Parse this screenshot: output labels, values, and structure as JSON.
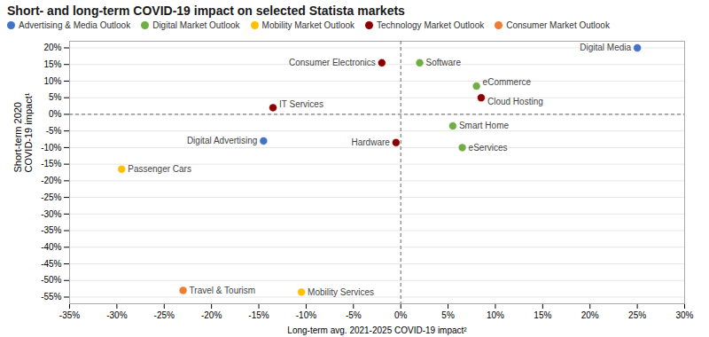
{
  "chart_data": {
    "type": "scatter",
    "title": "Short- and long-term COVID-19 impact on selected Statista markets",
    "xlabel": "Long-term avg. 2021-2025 COVID-19 impact²",
    "ylabel": "Short-term 2020\nCOVID-19 impact¹",
    "xlim": [
      -0.35,
      0.3
    ],
    "ylim": [
      -0.57,
      0.22
    ],
    "xticks": [
      {
        "value": -0.35,
        "label": "-35%"
      },
      {
        "value": -0.3,
        "label": "-30%"
      },
      {
        "value": -0.25,
        "label": "-25%"
      },
      {
        "value": -0.2,
        "label": "-20%"
      },
      {
        "value": -0.15,
        "label": "-15%"
      },
      {
        "value": -0.1,
        "label": "-10%"
      },
      {
        "value": -0.05,
        "label": "-5%"
      },
      {
        "value": 0.0,
        "label": "0%"
      },
      {
        "value": 0.05,
        "label": "5%"
      },
      {
        "value": 0.1,
        "label": "10%"
      },
      {
        "value": 0.15,
        "label": "15%"
      },
      {
        "value": 0.2,
        "label": "20%"
      },
      {
        "value": 0.25,
        "label": "25%"
      },
      {
        "value": 0.3,
        "label": "30%"
      }
    ],
    "yticks": [
      {
        "value": -0.55,
        "label": "-55%"
      },
      {
        "value": -0.5,
        "label": "-50%"
      },
      {
        "value": -0.45,
        "label": "-45%"
      },
      {
        "value": -0.4,
        "label": "-40%"
      },
      {
        "value": -0.35,
        "label": "-35%"
      },
      {
        "value": -0.3,
        "label": "-30%"
      },
      {
        "value": -0.25,
        "label": "-25%"
      },
      {
        "value": -0.2,
        "label": "-20%"
      },
      {
        "value": -0.15,
        "label": "-15%"
      },
      {
        "value": -0.1,
        "label": "-10%"
      },
      {
        "value": -0.05,
        "label": "-5%"
      },
      {
        "value": 0.0,
        "label": "0%"
      },
      {
        "value": 0.05,
        "label": "5%"
      },
      {
        "value": 0.1,
        "label": "10%"
      },
      {
        "value": 0.15,
        "label": "15%"
      },
      {
        "value": 0.2,
        "label": "20%"
      }
    ],
    "grid": true,
    "series": [
      {
        "name": "Advertising & Media Outlook",
        "color": "#4472C4"
      },
      {
        "name": "Digital Market Outlook",
        "color": "#70AD47"
      },
      {
        "name": "Mobility Market Outlook",
        "color": "#FFC000"
      },
      {
        "name": "Technology Market Outlook",
        "color": "#8B0000"
      },
      {
        "name": "Consumer Market Outlook",
        "color": "#ED7D31"
      }
    ],
    "points": [
      {
        "label": "Digital Media",
        "x": 0.25,
        "y": 0.2,
        "series": "Advertising & Media Outlook"
      },
      {
        "label": "eCommerce",
        "x": 0.08,
        "y": 0.085,
        "series": "Digital Market Outlook"
      },
      {
        "label": "Software",
        "x": 0.02,
        "y": 0.155,
        "series": "Digital Market Outlook"
      },
      {
        "label": "Cloud Hosting",
        "x": 0.085,
        "y": 0.05,
        "series": "Technology Market Outlook"
      },
      {
        "label": "Smart Home",
        "x": 0.055,
        "y": -0.035,
        "series": "Digital Market Outlook"
      },
      {
        "label": "eServices",
        "x": 0.065,
        "y": -0.1,
        "series": "Digital Market Outlook"
      },
      {
        "label": "Consumer Electronics",
        "x": -0.02,
        "y": 0.155,
        "series": "Technology Market Outlook"
      },
      {
        "label": "IT Services",
        "x": -0.135,
        "y": 0.02,
        "series": "Technology Market Outlook"
      },
      {
        "label": "Hardware",
        "x": -0.005,
        "y": -0.085,
        "series": "Technology Market Outlook"
      },
      {
        "label": "Digital Advertising",
        "x": -0.145,
        "y": -0.08,
        "series": "Advertising & Media Outlook"
      },
      {
        "label": "Passenger Cars",
        "x": -0.295,
        "y": -0.165,
        "series": "Mobility Market Outlook"
      },
      {
        "label": "Travel & Tourism",
        "x": -0.23,
        "y": -0.53,
        "series": "Consumer Market Outlook"
      },
      {
        "label": "Mobility Services",
        "x": -0.105,
        "y": -0.535,
        "series": "Mobility Market Outlook"
      }
    ]
  }
}
